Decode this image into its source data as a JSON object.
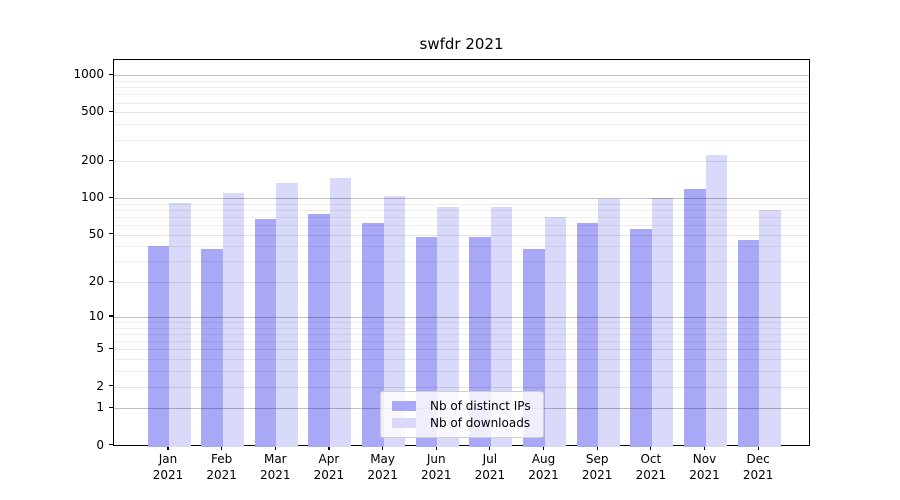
{
  "chart_data": {
    "type": "bar",
    "title": "swfdr 2021",
    "categories": [
      "Jan 2021",
      "Feb 2021",
      "Mar 2021",
      "Apr 2021",
      "May 2021",
      "Jun 2021",
      "Jul 2021",
      "Aug 2021",
      "Sep 2021",
      "Oct 2021",
      "Nov 2021",
      "Dec 2021"
    ],
    "series": [
      {
        "name": "Nb of distinct IPs",
        "color": "#a8a8f6",
        "values": [
          40,
          38,
          68,
          74,
          63,
          48,
          48,
          38,
          63,
          56,
          118,
          45
        ]
      },
      {
        "name": "Nb of downloads",
        "color": "#d9d9f9",
        "values": [
          92,
          110,
          132,
          145,
          105,
          84,
          84,
          70,
          98,
          100,
          227,
          80
        ]
      }
    ],
    "xlabel": "",
    "ylabel": "",
    "yscale": "log1p",
    "ylim": [
      0,
      1150
    ],
    "yticks": [
      0,
      1,
      2,
      5,
      10,
      20,
      50,
      100,
      200,
      500,
      1000
    ],
    "yticks_minor": [
      3,
      4,
      6,
      7,
      8,
      9,
      30,
      40,
      60,
      70,
      80,
      90,
      300,
      400,
      600,
      700,
      800,
      900
    ],
    "major_grid_values": [
      1,
      10,
      100,
      1000
    ],
    "grid": true,
    "legend_position": "lower center",
    "axis_color": "#000000",
    "grid_major_color": "rgba(0,0,0,0.25)",
    "grid_mid_color": "rgba(0,0,0,0.10)",
    "grid_minor_color": "rgba(0,0,0,0.07)"
  }
}
